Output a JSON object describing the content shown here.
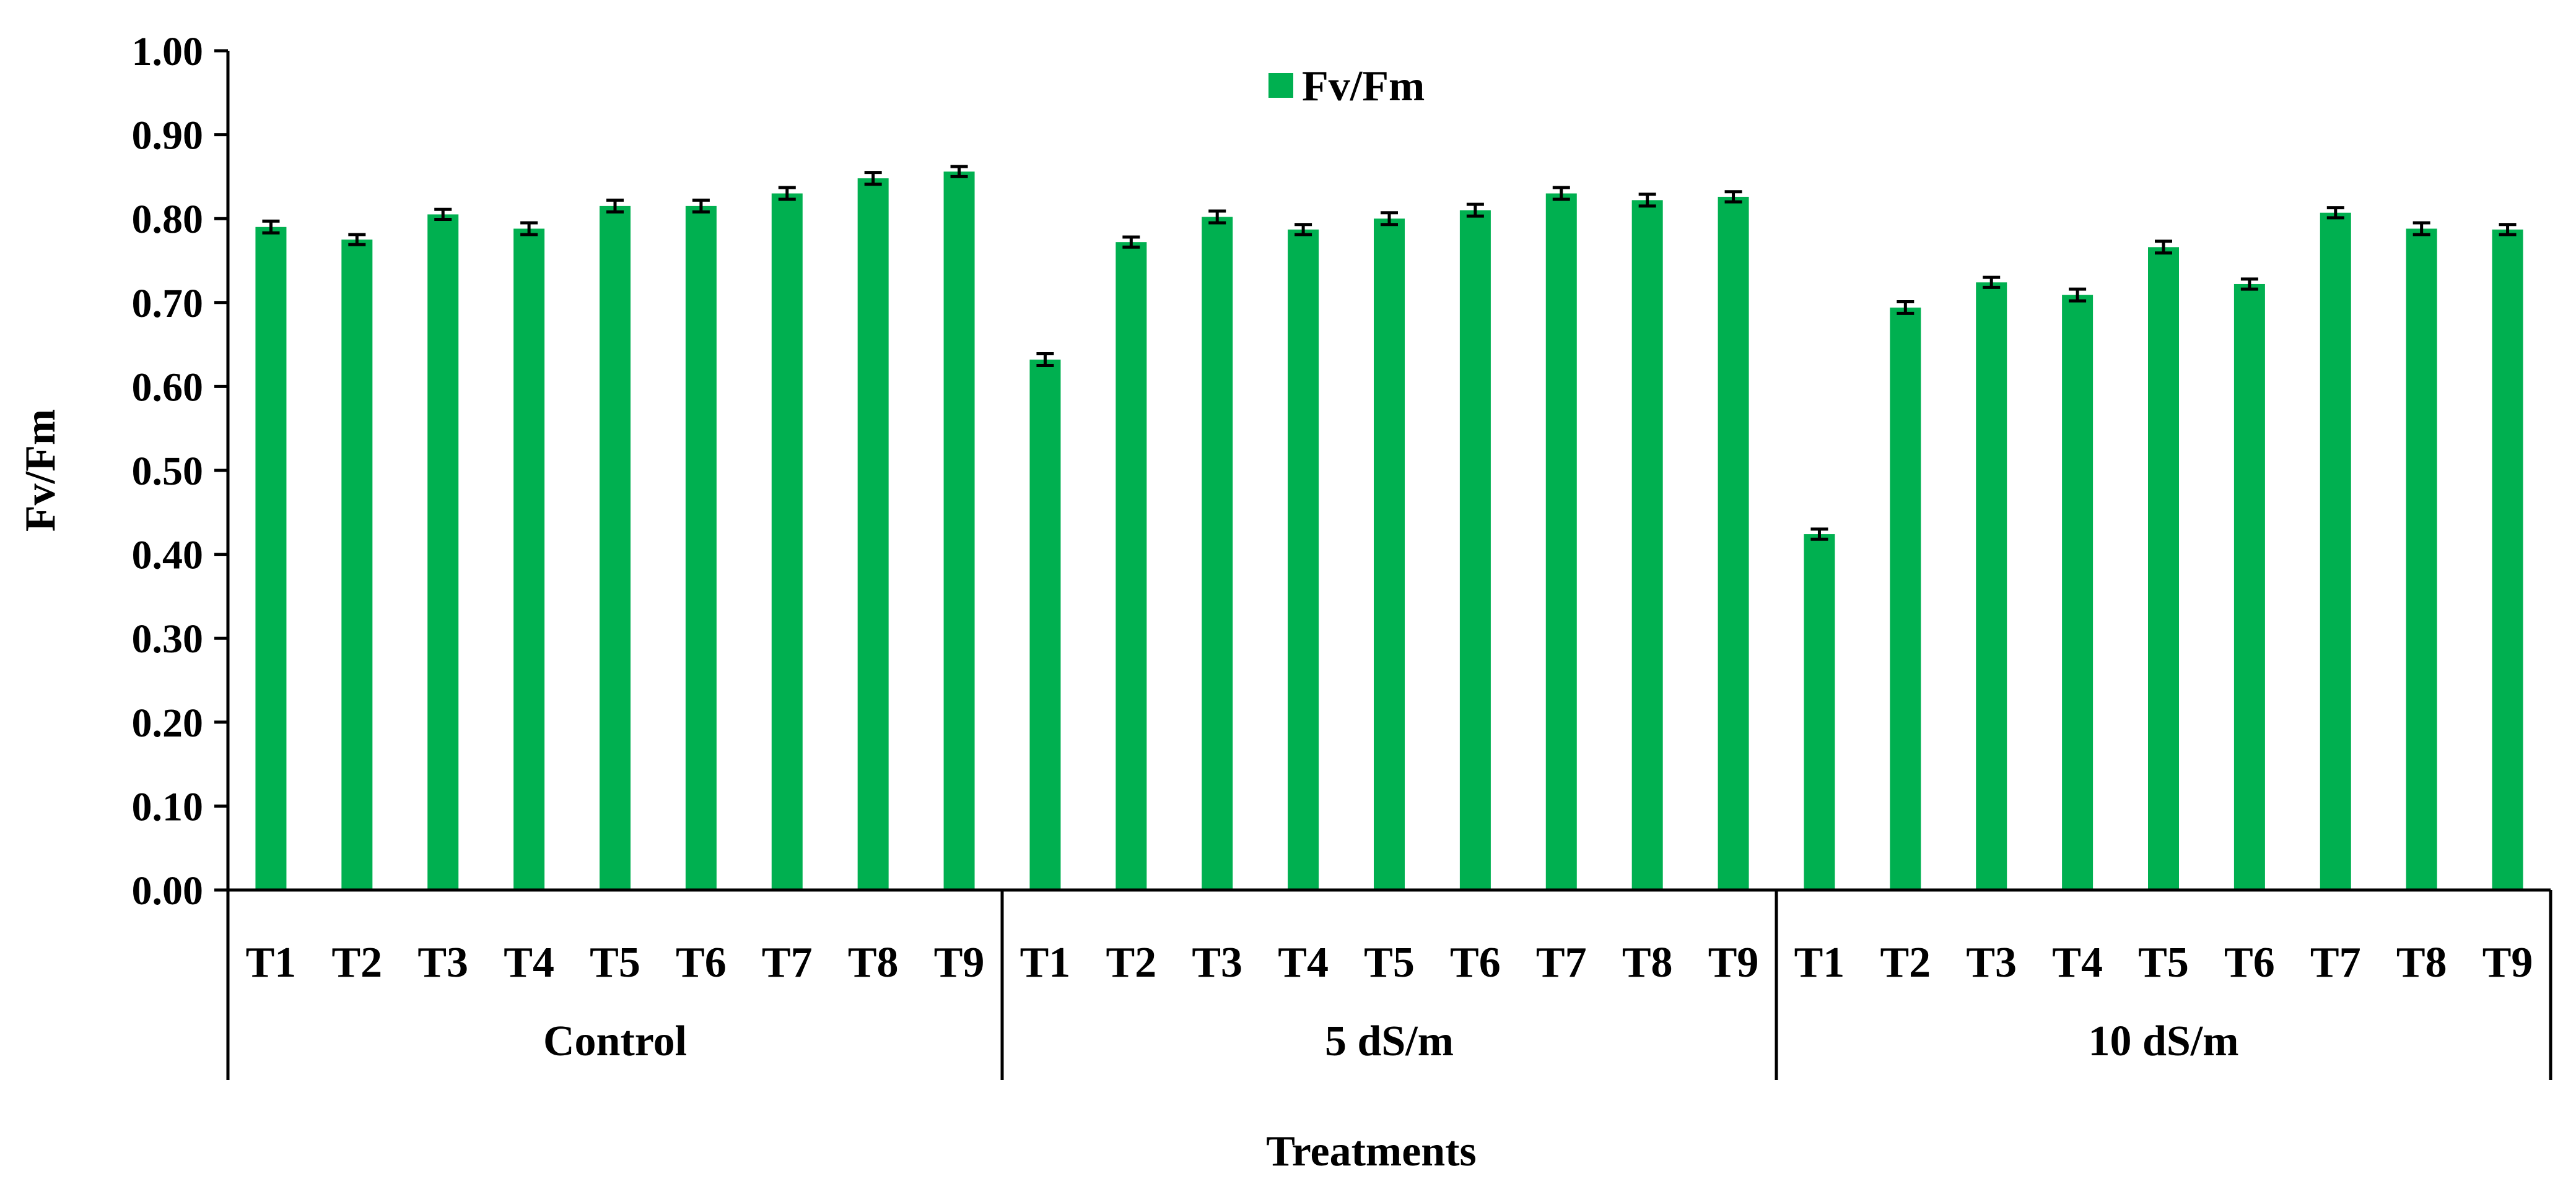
{
  "chart_data": {
    "type": "bar",
    "ylabel": "Fv/Fm",
    "xlabel": "Treatments",
    "ylim": [
      0,
      1.0
    ],
    "yticks": [
      "0.00",
      "0.10",
      "0.20",
      "0.30",
      "0.40",
      "0.50",
      "0.60",
      "0.70",
      "0.80",
      "0.90",
      "1.00"
    ],
    "grid": false,
    "legend": {
      "position": "top-center",
      "entries": [
        "Fv/Fm"
      ]
    },
    "colors": {
      "bar": "#00B050",
      "error_bar": "#000000",
      "axis": "#000000"
    },
    "groups": [
      {
        "label": "Control",
        "categories": [
          "T1",
          "T2",
          "T3",
          "T4",
          "T5",
          "T6",
          "T7",
          "T8",
          "T9"
        ]
      },
      {
        "label": "5 dS/m",
        "categories": [
          "T1",
          "T2",
          "T3",
          "T4",
          "T5",
          "T6",
          "T7",
          "T8",
          "T9"
        ]
      },
      {
        "label": "10 dS/m",
        "categories": [
          "T1",
          "T2",
          "T3",
          "T4",
          "T5",
          "T6",
          "T7",
          "T8",
          "T9"
        ]
      }
    ],
    "series": [
      {
        "name": "Fv/Fm",
        "values": [
          0.79,
          0.775,
          0.805,
          0.788,
          0.815,
          0.815,
          0.83,
          0.848,
          0.856,
          0.632,
          0.772,
          0.802,
          0.787,
          0.8,
          0.81,
          0.83,
          0.822,
          0.826,
          0.424,
          0.694,
          0.724,
          0.709,
          0.766,
          0.722,
          0.807,
          0.788,
          0.787
        ],
        "errors": [
          0.007,
          0.006,
          0.006,
          0.007,
          0.007,
          0.007,
          0.007,
          0.007,
          0.006,
          0.007,
          0.006,
          0.007,
          0.006,
          0.007,
          0.007,
          0.007,
          0.007,
          0.006,
          0.006,
          0.007,
          0.006,
          0.007,
          0.007,
          0.006,
          0.006,
          0.007,
          0.006
        ]
      }
    ]
  }
}
